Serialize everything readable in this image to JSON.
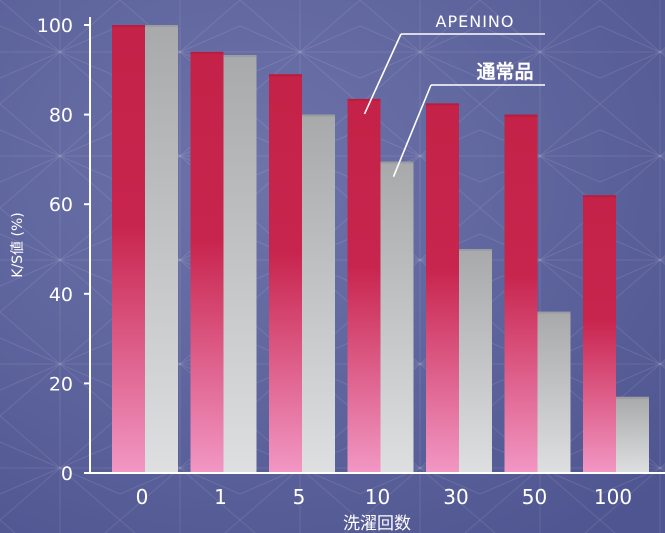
{
  "chart_data": {
    "type": "bar",
    "categories": [
      "0",
      "1",
      "5",
      "10",
      "30",
      "50",
      "100"
    ],
    "series": [
      {
        "name": "APENINO",
        "values": [
          100,
          94,
          89,
          83.5,
          82.5,
          80,
          62
        ]
      },
      {
        "name": "通常品",
        "values": [
          100,
          93.3,
          80,
          69.5,
          50,
          36,
          17
        ]
      }
    ],
    "xlabel": "洗濯回数",
    "ylabel": "K/S値 (%)",
    "ylim": [
      0,
      100
    ],
    "yticks": [
      "0",
      "20",
      "40",
      "60",
      "80",
      "100"
    ],
    "grid": false,
    "legend": "callout labels pointing into the 10-wash bars"
  },
  "colors": {
    "background": "#5c6299",
    "axis": "#ffffff",
    "text": "#ffffff",
    "apenino_top": "#c42247",
    "apenino_bottom": "#f297c4",
    "normal_top": "#a8a9ab",
    "normal_bottom": "#dedfe0"
  }
}
